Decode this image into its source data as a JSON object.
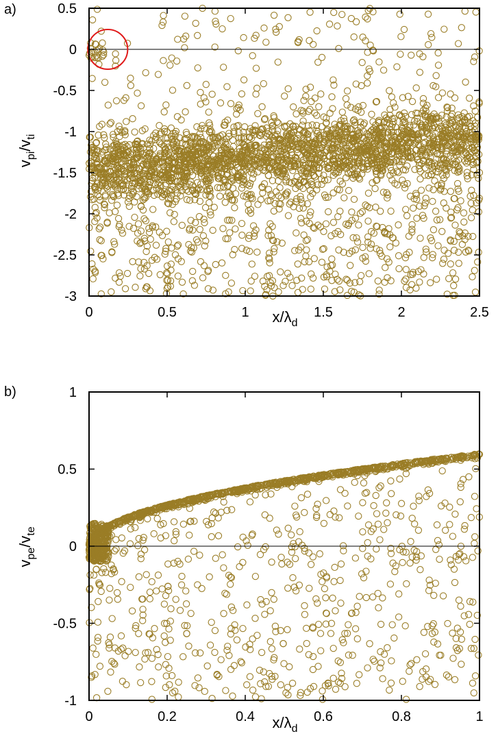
{
  "chart_data": [
    {
      "type": "scatter",
      "panel_label": "a)",
      "xlabel": "x/λ",
      "xlabel_sub": "d",
      "ylabel": "v",
      "ylabel_sub": "pi",
      "ylabel_mid": "/v",
      "ylabel_sub2": "ti",
      "xlim": [
        0,
        2.5
      ],
      "ylim": [
        -3,
        0.5
      ],
      "xticks": [
        "0",
        "0.5",
        "1",
        "1.5",
        "2",
        "2.5"
      ],
      "yticks": [
        "0.5",
        "0",
        "-0.5",
        "-1",
        "-1.5",
        "-2",
        "-2.5",
        "-3"
      ],
      "zero_line": true,
      "marker_color": "#9a7d26",
      "highlight_circle": {
        "x": 0.12,
        "y": 0.0,
        "color": "#e01a1a"
      },
      "series": [
        {
          "distribution": "dense band centred near -1.45 (x=0) rising to about -1.1 (x=2.5), spread ±0.35, plus sparse points between -3 and 0.5",
          "band": {
            "x_range": [
              0,
              2.5
            ],
            "center_start": -1.45,
            "center_end": -1.1,
            "half_width": 0.35
          },
          "sparse_range_y": [
            -3,
            0.5
          ],
          "cluster_near_origin": {
            "x_range": [
              0,
              0.12
            ],
            "y_range": [
              -0.15,
              0.1
            ]
          }
        }
      ]
    },
    {
      "type": "scatter",
      "panel_label": "b)",
      "xlabel": "x/λ",
      "xlabel_sub": "d",
      "ylabel": "v",
      "ylabel_sub": "pe",
      "ylabel_mid": "/v",
      "ylabel_sub2": "te",
      "xlim": [
        0,
        1
      ],
      "ylim": [
        -1,
        1
      ],
      "xticks": [
        "0",
        "0.2",
        "0.4",
        "0.6",
        "0.8",
        "1"
      ],
      "yticks": [
        "1",
        "0.5",
        "0",
        "-0.5",
        "-1"
      ],
      "zero_line": true,
      "marker_color": "#9a7d26",
      "series": [
        {
          "distribution": "dense curve v ≈ 0.6·sqrt(x) rising from 0 to 0.6, with a dense spike near x=0 between -0.1 and 0.15, plus sparse points between -1 and the curve",
          "curve_points": [
            [
              0.0,
              0.0
            ],
            [
              0.05,
              0.1
            ],
            [
              0.1,
              0.17
            ],
            [
              0.2,
              0.26
            ],
            [
              0.3,
              0.33
            ],
            [
              0.4,
              0.38
            ],
            [
              0.5,
              0.43
            ],
            [
              0.6,
              0.47
            ],
            [
              0.7,
              0.51
            ],
            [
              0.8,
              0.55
            ],
            [
              0.9,
              0.58
            ],
            [
              1.0,
              0.6
            ]
          ],
          "sparse_range_y": [
            -1,
            0.6
          ]
        }
      ]
    }
  ]
}
